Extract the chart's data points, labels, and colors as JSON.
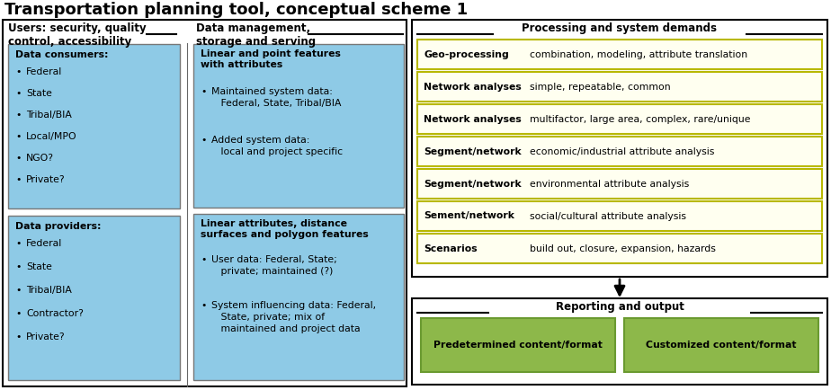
{
  "title": "Transportation planning tool, conceptual scheme 1",
  "title_fontsize": 13,
  "bg_color": "#ffffff",
  "left_box": {
    "header_left": "Users: security, quality\ncontrol, accessibility",
    "header_right": "Data management,\nstorage and serving",
    "inner_bg": "#8ecae6",
    "consumers_title": "Data consumers:",
    "consumers_items": [
      "Federal",
      "State",
      "Tribal/BIA",
      "Local/MPO",
      "NGO?",
      "Private?"
    ],
    "providers_title": "Data providers:",
    "providers_items": [
      "Federal",
      "State",
      "Tribal/BIA",
      "Contractor?",
      "Private?"
    ],
    "linear_title": "Linear and point features\nwith attributes",
    "linear_items": [
      [
        "Maintained system data:",
        "   Federal, State, Tribal/BIA"
      ],
      [
        "Added system data:",
        "   local and project specific"
      ]
    ],
    "polygon_title": "Linear attributes, distance\nsurfaces and polygon features",
    "polygon_items": [
      [
        "User data: Federal, State;",
        "   private; maintained (?)"
      ],
      [
        "System influencing data: Federal,",
        "   State, private; mix of",
        "   maintained and project data"
      ]
    ]
  },
  "right_box": {
    "header": "Processing and system demands",
    "row_bg": "#fffff0",
    "row_border": "#b8b800",
    "rows": [
      {
        "bold": "Geo-processing",
        "text": "combination, modeling, attribute translation"
      },
      {
        "bold": "Network analyses",
        "text": "simple, repeatable, common"
      },
      {
        "bold": "Network analyses",
        "text": "multifactor, large area, complex, rare/unique"
      },
      {
        "bold": "Segment/network",
        "text": "economic/industrial attribute analysis"
      },
      {
        "bold": "Segment/network",
        "text": "environmental attribute analysis"
      },
      {
        "bold": "Sement/network",
        "text": "social/cultural attribute analysis"
      },
      {
        "bold": "Scenarios",
        "text": "build out, closure, expansion, hazards"
      }
    ]
  },
  "output_box": {
    "header": "Reporting and output",
    "btn1_text": "Predetermined content/format",
    "btn2_text": "Customized content/format",
    "btn_bg": "#8db84a",
    "btn_border": "#6a9a30"
  }
}
